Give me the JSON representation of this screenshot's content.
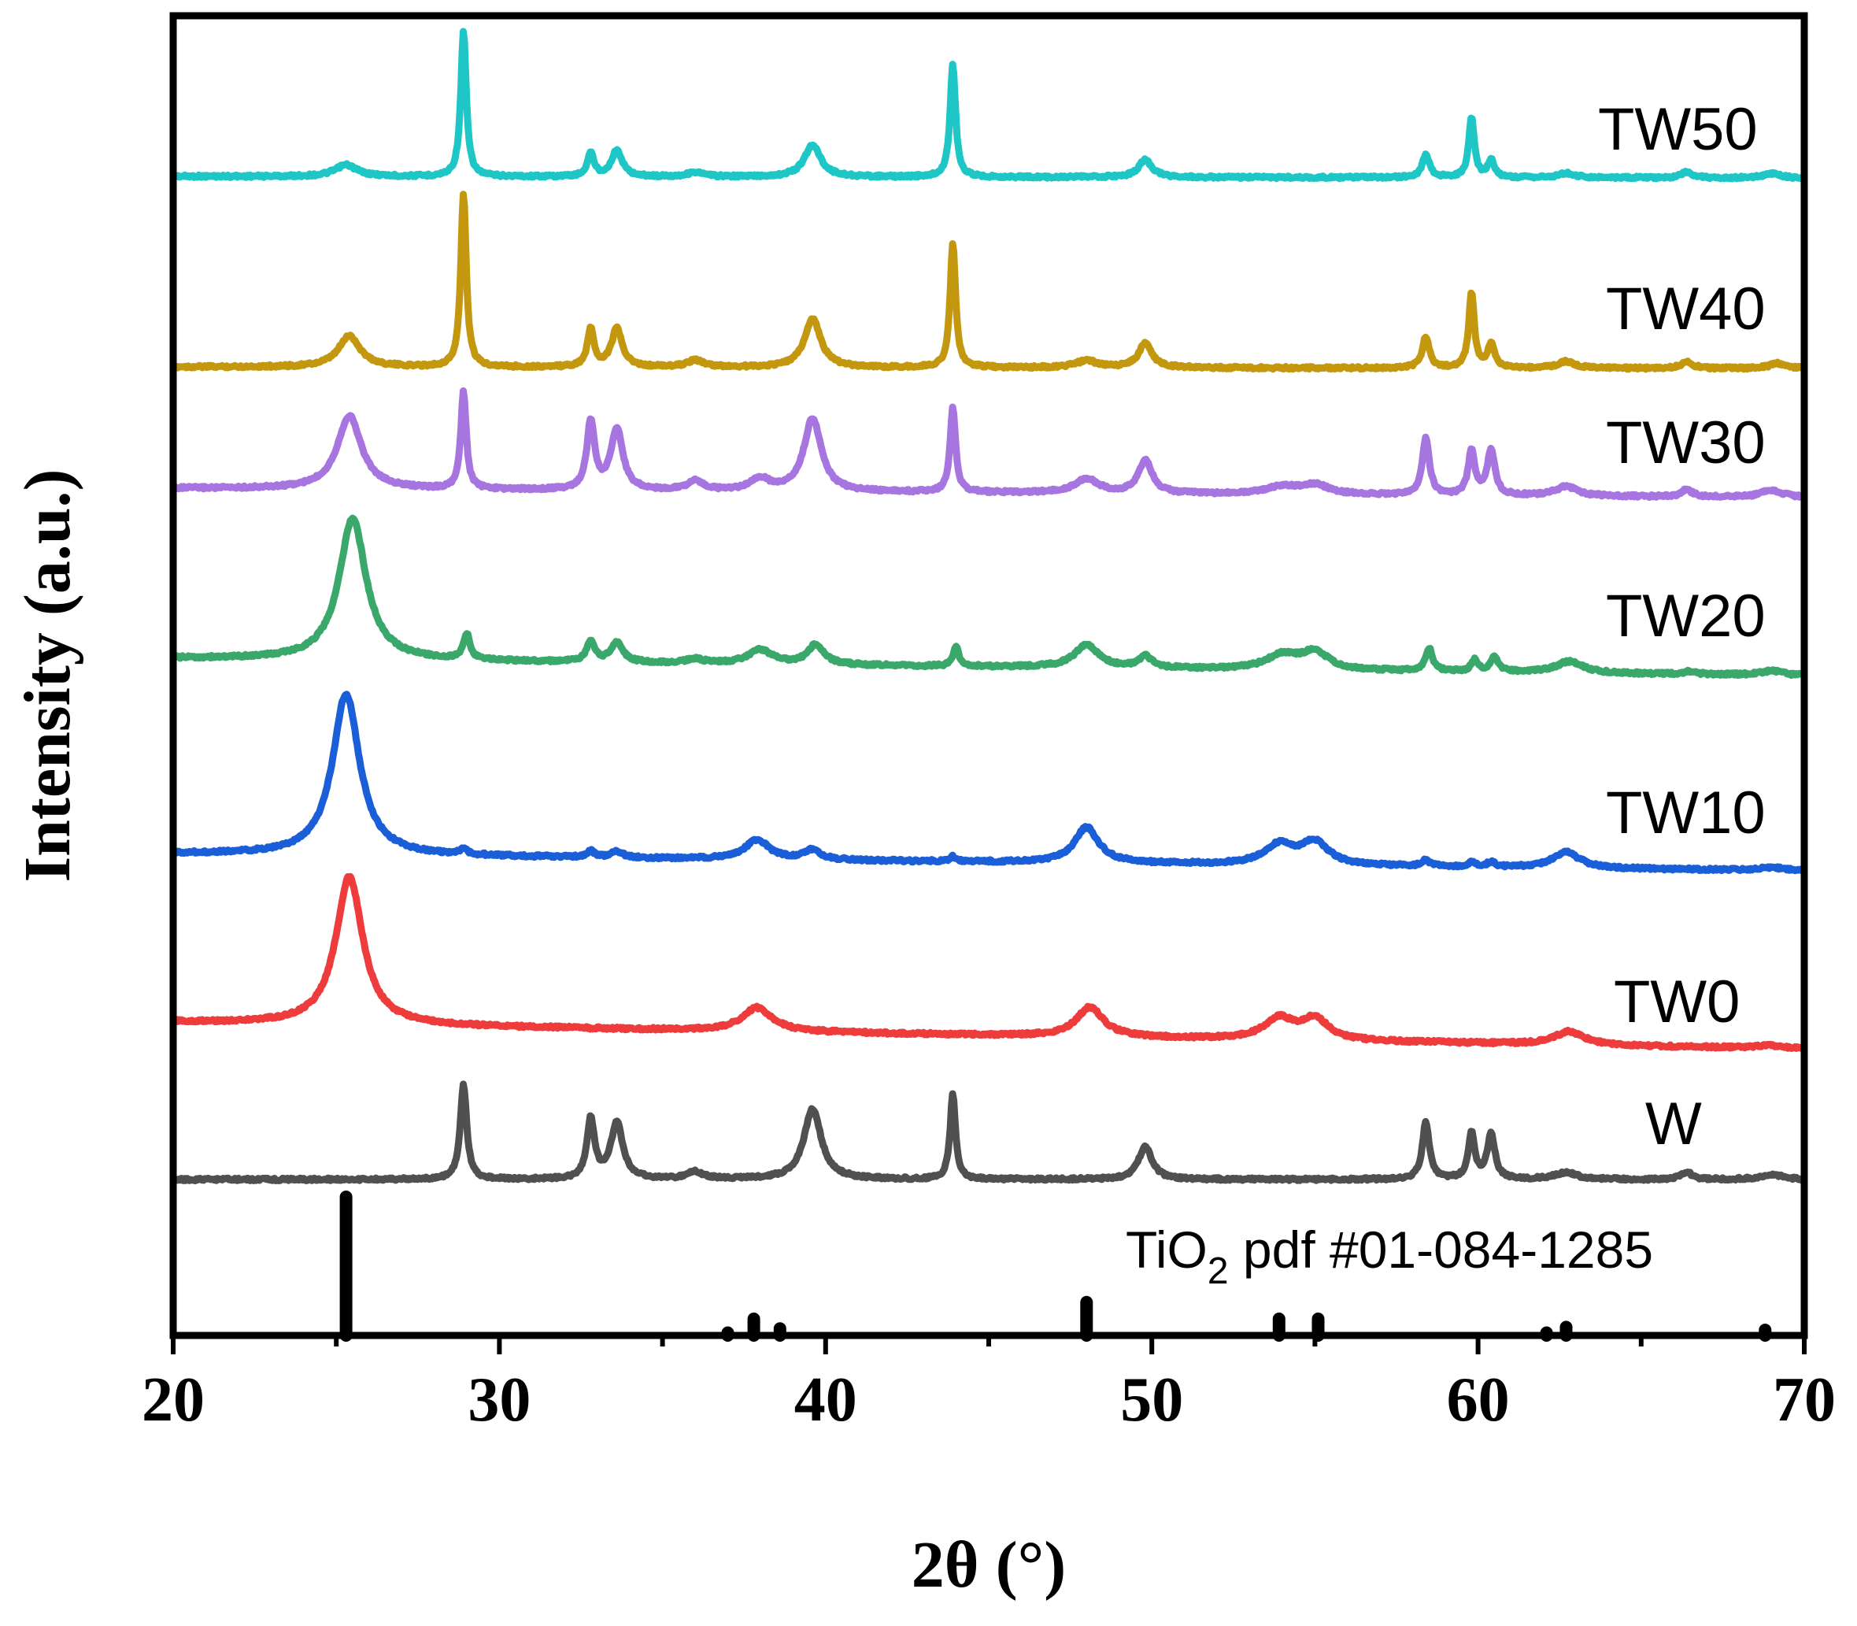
{
  "chart_data": {
    "type": "line",
    "title": "",
    "xlabel": "2θ (°)",
    "ylabel": "Intensity (a.u.)",
    "xlim": [
      20,
      70
    ],
    "xticks": [
      20,
      30,
      40,
      50,
      60,
      70
    ],
    "xtick_labels": [
      "20",
      "30",
      "40",
      "50",
      "60",
      "70"
    ],
    "yticks_shown": false,
    "legend": "inline labels at right of each trace",
    "reference": {
      "label_main": "TiO",
      "label_sub": "2",
      "label_rest": " pdf #01-084-1285",
      "lines": [
        {
          "x": 25.3,
          "h": 100
        },
        {
          "x": 37.0,
          "h": 2
        },
        {
          "x": 37.8,
          "h": 12
        },
        {
          "x": 38.6,
          "h": 5
        },
        {
          "x": 48.0,
          "h": 24
        },
        {
          "x": 53.9,
          "h": 12
        },
        {
          "x": 55.1,
          "h": 12
        },
        {
          "x": 62.1,
          "h": 2
        },
        {
          "x": 62.7,
          "h": 6
        },
        {
          "x": 68.8,
          "h": 4
        }
      ]
    },
    "series": [
      {
        "name": "TW50",
        "color": "#1ec6c6",
        "baseline": [
          1,
          1
        ],
        "offset": 0,
        "peaks": [
          [
            25.3,
            8,
            0.4
          ],
          [
            28.9,
            100,
            0.1
          ],
          [
            32.8,
            16,
            0.12
          ],
          [
            33.6,
            18,
            0.2
          ],
          [
            36.0,
            3,
            0.3
          ],
          [
            39.6,
            22,
            0.3
          ],
          [
            43.9,
            78,
            0.1
          ],
          [
            49.8,
            12,
            0.25
          ],
          [
            58.4,
            16,
            0.13
          ],
          [
            59.8,
            42,
            0.1
          ],
          [
            60.4,
            12,
            0.12
          ],
          [
            62.7,
            3,
            0.3
          ],
          [
            66.4,
            4,
            0.2
          ],
          [
            69.0,
            3,
            0.3
          ]
        ]
      },
      {
        "name": "TW40",
        "color": "#c4980e",
        "baseline": [
          1,
          1
        ],
        "offset": 0,
        "peaks": [
          [
            25.4,
            18,
            0.4
          ],
          [
            28.9,
            100,
            0.1
          ],
          [
            32.8,
            22,
            0.12
          ],
          [
            33.6,
            22,
            0.2
          ],
          [
            36.0,
            4,
            0.3
          ],
          [
            39.6,
            28,
            0.3
          ],
          [
            43.9,
            72,
            0.1
          ],
          [
            48.0,
            4,
            0.4
          ],
          [
            49.8,
            14,
            0.25
          ],
          [
            58.4,
            18,
            0.13
          ],
          [
            59.8,
            44,
            0.1
          ],
          [
            60.4,
            14,
            0.12
          ],
          [
            62.7,
            4,
            0.3
          ],
          [
            66.4,
            4,
            0.2
          ],
          [
            69.2,
            3,
            0.3
          ]
        ]
      },
      {
        "name": "TW30",
        "color": "#a775e0",
        "baseline": [
          1,
          0
        ],
        "offset": 0,
        "peaks": [
          [
            25.4,
            62,
            0.45
          ],
          [
            28.9,
            82,
            0.1
          ],
          [
            32.8,
            58,
            0.14
          ],
          [
            33.6,
            52,
            0.22
          ],
          [
            36.0,
            8,
            0.3
          ],
          [
            38.0,
            10,
            0.35
          ],
          [
            39.6,
            62,
            0.32
          ],
          [
            43.9,
            72,
            0.1
          ],
          [
            48.0,
            12,
            0.45
          ],
          [
            49.8,
            28,
            0.25
          ],
          [
            54.0,
            6,
            0.6
          ],
          [
            55.0,
            8,
            0.5
          ],
          [
            58.4,
            48,
            0.13
          ],
          [
            59.8,
            38,
            0.12
          ],
          [
            60.4,
            38,
            0.14
          ],
          [
            62.7,
            8,
            0.4
          ],
          [
            66.4,
            6,
            0.2
          ],
          [
            69.0,
            6,
            0.4
          ]
        ]
      },
      {
        "name": "TW20",
        "color": "#3aa86a",
        "baseline": [
          1,
          -1
        ],
        "offset": 0,
        "peaks": [
          [
            25.5,
            100,
            0.5
          ],
          [
            29.0,
            18,
            0.12
          ],
          [
            32.8,
            14,
            0.15
          ],
          [
            33.6,
            14,
            0.22
          ],
          [
            36.0,
            3,
            0.3
          ],
          [
            38.0,
            10,
            0.45
          ],
          [
            39.7,
            14,
            0.3
          ],
          [
            44.0,
            14,
            0.1
          ],
          [
            48.0,
            16,
            0.45
          ],
          [
            49.8,
            8,
            0.25
          ],
          [
            54.0,
            10,
            0.6
          ],
          [
            55.0,
            12,
            0.5
          ],
          [
            58.5,
            16,
            0.13
          ],
          [
            59.9,
            8,
            0.12
          ],
          [
            60.5,
            10,
            0.14
          ],
          [
            62.8,
            8,
            0.5
          ],
          [
            66.5,
            2,
            0.2
          ],
          [
            69.0,
            3,
            0.4
          ]
        ]
      },
      {
        "name": "TW10",
        "color": "#1a5ed8",
        "baseline": [
          1,
          -1
        ],
        "offset": 0,
        "peaks": [
          [
            25.3,
            100,
            0.5
          ],
          [
            28.9,
            4,
            0.12
          ],
          [
            32.8,
            4,
            0.12
          ],
          [
            33.6,
            4,
            0.2
          ],
          [
            37.9,
            12,
            0.45
          ],
          [
            39.6,
            6,
            0.3
          ],
          [
            43.9,
            3,
            0.1
          ],
          [
            48.0,
            22,
            0.45
          ],
          [
            53.9,
            12,
            0.55
          ],
          [
            55.0,
            14,
            0.5
          ],
          [
            58.4,
            4,
            0.13
          ],
          [
            59.8,
            3,
            0.12
          ],
          [
            60.4,
            3,
            0.14
          ],
          [
            62.7,
            10,
            0.5
          ],
          [
            69.0,
            2,
            0.4
          ]
        ]
      },
      {
        "name": "TW0",
        "color": "#ee3c3c",
        "baseline": [
          2,
          -1
        ],
        "offset": 0,
        "peaks": [
          [
            25.4,
            100,
            0.5
          ],
          [
            37.9,
            16,
            0.55
          ],
          [
            48.1,
            20,
            0.5
          ],
          [
            53.9,
            14,
            0.55
          ],
          [
            55.0,
            14,
            0.5
          ],
          [
            62.8,
            9,
            0.55
          ],
          [
            68.9,
            2,
            0.4
          ]
        ]
      },
      {
        "name": "W",
        "color": "#505050",
        "baseline": [
          0,
          0
        ],
        "offset": 0,
        "peaks": [
          [
            28.9,
            80,
            0.12
          ],
          [
            32.8,
            50,
            0.14
          ],
          [
            33.6,
            48,
            0.22
          ],
          [
            36.0,
            6,
            0.3
          ],
          [
            39.6,
            60,
            0.32
          ],
          [
            43.9,
            72,
            0.1
          ],
          [
            49.8,
            28,
            0.25
          ],
          [
            58.4,
            48,
            0.13
          ],
          [
            59.8,
            38,
            0.12
          ],
          [
            60.4,
            38,
            0.14
          ],
          [
            62.7,
            6,
            0.4
          ],
          [
            66.4,
            6,
            0.2
          ],
          [
            69.0,
            4,
            0.4
          ]
        ]
      }
    ]
  }
}
